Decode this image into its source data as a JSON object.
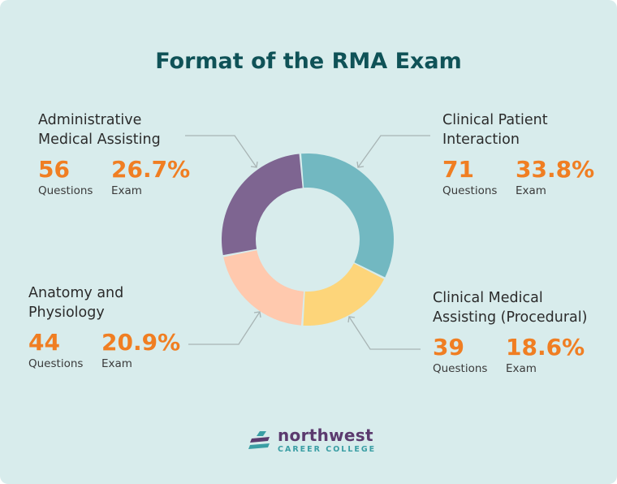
{
  "title": "Format of the RMA Exam",
  "questions_label": "Questions",
  "exam_label": "Exam",
  "chart_data": {
    "type": "pie",
    "title": "Format of the RMA Exam",
    "series": [
      {
        "name": "Clinical Patient Interaction",
        "name_lines": [
          "Clinical Patient",
          "Interaction"
        ],
        "questions": 71,
        "percent_label": "33.8%",
        "value": 33.8,
        "color": "#72b8c1"
      },
      {
        "name": "Clinical Medical Assisting (Procedural)",
        "name_lines": [
          "Clinical Medical",
          "Assisting (Procedural)"
        ],
        "questions": 39,
        "percent_label": "18.6%",
        "value": 18.6,
        "color": "#fdd57a"
      },
      {
        "name": "Anatomy and Physiology",
        "name_lines": [
          "Anatomy and",
          "Physiology"
        ],
        "questions": 44,
        "percent_label": "20.9%",
        "value": 20.9,
        "color": "#ffc9ae"
      },
      {
        "name": "Administrative Medical Assisting",
        "name_lines": [
          "Administrative",
          "Medical Assisting"
        ],
        "questions": 56,
        "percent_label": "26.7%",
        "value": 26.7,
        "color": "#7e6591"
      }
    ],
    "legend": "none",
    "grid": false
  },
  "logo": {
    "main": "northwest",
    "sub": "CAREER COLLEGE",
    "colors": {
      "dark": "#5b3a6e",
      "teal": "#3a9ea4"
    },
    "icon": "stripes-logo-icon"
  }
}
